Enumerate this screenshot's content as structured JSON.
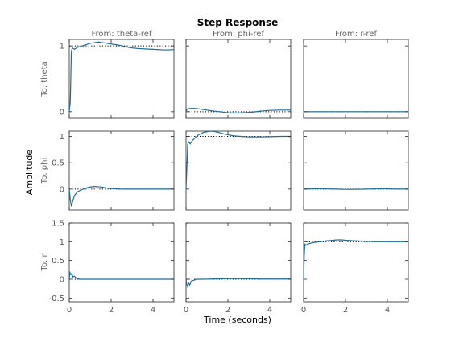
{
  "chart_data": {
    "type": "line",
    "title": "Step Response",
    "xlabel": "Time (seconds)",
    "ylabel": "Amplitude",
    "columns": [
      "From: theta-ref",
      "From: phi-ref",
      "From: r-ref"
    ],
    "rows": [
      "To: theta",
      "To: phi",
      "To: r"
    ],
    "xlim": [
      0,
      5
    ],
    "xticks": [
      0,
      2,
      4
    ],
    "row_axes": [
      {
        "ylim": [
          -0.1,
          1.1
        ],
        "yticks": [
          0,
          1
        ]
      },
      {
        "ylim": [
          -0.4,
          1.1
        ],
        "yticks": [
          0,
          0.5,
          1
        ]
      },
      {
        "ylim": [
          -0.6,
          1.5
        ],
        "yticks": [
          -0.5,
          0,
          0.5,
          1,
          1.5
        ]
      }
    ],
    "series_color": "#1f6e96",
    "panels": [
      {
        "row": 0,
        "col": 0,
        "final_value": 1,
        "x": [
          0,
          0.05,
          0.1,
          0.15,
          0.25,
          0.4,
          0.6,
          0.8,
          1.0,
          1.2,
          1.4,
          1.6,
          1.8,
          2.0,
          2.2,
          2.4,
          2.6,
          2.8,
          3.0,
          3.3,
          3.6,
          3.9,
          4.2,
          4.5,
          4.8,
          5.0
        ],
        "y": [
          0,
          0.15,
          0.92,
          0.97,
          0.95,
          0.98,
          1.0,
          1.02,
          1.04,
          1.05,
          1.06,
          1.05,
          1.04,
          1.03,
          1.02,
          1.01,
          0.995,
          0.98,
          0.97,
          0.96,
          0.955,
          0.95,
          0.945,
          0.94,
          0.94,
          0.945
        ]
      },
      {
        "row": 0,
        "col": 1,
        "final_value": 0,
        "x": [
          0,
          0.05,
          0.2,
          0.4,
          0.6,
          0.8,
          1.0,
          1.3,
          1.6,
          2.0,
          2.4,
          2.8,
          3.2,
          3.6,
          4.0,
          4.4,
          4.8,
          5.0
        ],
        "y": [
          0,
          0.04,
          0.05,
          0.05,
          0.045,
          0.035,
          0.025,
          0.01,
          0.0,
          -0.015,
          -0.02,
          -0.015,
          -0.005,
          0.01,
          0.02,
          0.025,
          0.025,
          0.025
        ]
      },
      {
        "row": 0,
        "col": 2,
        "final_value": 0,
        "x": [
          0,
          5
        ],
        "y": [
          0.0,
          0.0
        ]
      },
      {
        "row": 1,
        "col": 0,
        "final_value": 0,
        "x": [
          0,
          0.05,
          0.1,
          0.15,
          0.25,
          0.4,
          0.6,
          0.8,
          1.0,
          1.2,
          1.4,
          1.6,
          1.8,
          2.0,
          2.5,
          3.0,
          4.0,
          5.0
        ],
        "y": [
          0,
          -0.2,
          -0.33,
          -0.25,
          -0.12,
          -0.05,
          -0.01,
          0.02,
          0.04,
          0.05,
          0.045,
          0.035,
          0.02,
          0.01,
          0.0,
          0.0,
          0.0,
          0.0
        ]
      },
      {
        "row": 1,
        "col": 1,
        "final_value": 1,
        "x": [
          0,
          0.03,
          0.08,
          0.12,
          0.2,
          0.3,
          0.45,
          0.6,
          0.8,
          1.0,
          1.2,
          1.4,
          1.6,
          1.8,
          2.0,
          2.3,
          2.6,
          3.0,
          3.5,
          4.0,
          4.5,
          5.0
        ],
        "y": [
          0,
          0.3,
          0.85,
          0.9,
          0.86,
          0.92,
          0.98,
          1.03,
          1.07,
          1.09,
          1.1,
          1.09,
          1.07,
          1.05,
          1.03,
          1.01,
          1.0,
          0.99,
          0.99,
          0.995,
          1.0,
          1.0
        ]
      },
      {
        "row": 1,
        "col": 2,
        "final_value": 0,
        "x": [
          0,
          0.5,
          1.0,
          1.5,
          2.0,
          2.5,
          3.0,
          3.5,
          4.0,
          4.5,
          5.0
        ],
        "y": [
          0.0,
          0.005,
          0.005,
          0.0,
          -0.005,
          -0.005,
          0.0,
          0.005,
          0.005,
          0.0,
          0.0
        ]
      },
      {
        "row": 2,
        "col": 0,
        "final_value": 0,
        "x": [
          0,
          0.03,
          0.08,
          0.12,
          0.18,
          0.25,
          0.35,
          0.5,
          1.0,
          2.0,
          3.0,
          4.0,
          5.0
        ],
        "y": [
          0,
          0.18,
          0.12,
          0.15,
          0.06,
          0.08,
          0.02,
          0.0,
          0.0,
          0.0,
          0.0,
          0.0,
          0.0
        ]
      },
      {
        "row": 2,
        "col": 1,
        "final_value": 0,
        "x": [
          0,
          0.03,
          0.08,
          0.12,
          0.18,
          0.25,
          0.35,
          0.5,
          0.8,
          1.2,
          1.6,
          2.0,
          2.4,
          2.8,
          3.2,
          3.6,
          4.0,
          4.5,
          5.0
        ],
        "y": [
          0,
          -0.12,
          -0.22,
          -0.1,
          -0.15,
          -0.05,
          -0.03,
          0.0,
          0.0,
          0.005,
          0.01,
          0.015,
          0.02,
          0.015,
          0.01,
          0.005,
          0.005,
          0.005,
          0.005
        ]
      },
      {
        "row": 2,
        "col": 2,
        "final_value": 1,
        "x": [
          0,
          0.03,
          0.06,
          0.1,
          0.2,
          0.4,
          0.6,
          0.8,
          1.0,
          1.2,
          1.4,
          1.6,
          1.8,
          2.0,
          2.3,
          2.6,
          3.0,
          3.5,
          4.0,
          4.5,
          5.0
        ],
        "y": [
          0,
          0.6,
          0.95,
          0.9,
          0.94,
          0.97,
          0.99,
          1.0,
          1.02,
          1.03,
          1.04,
          1.05,
          1.05,
          1.04,
          1.03,
          1.02,
          1.01,
          1.0,
          1.0,
          1.0,
          1.0
        ]
      }
    ]
  }
}
